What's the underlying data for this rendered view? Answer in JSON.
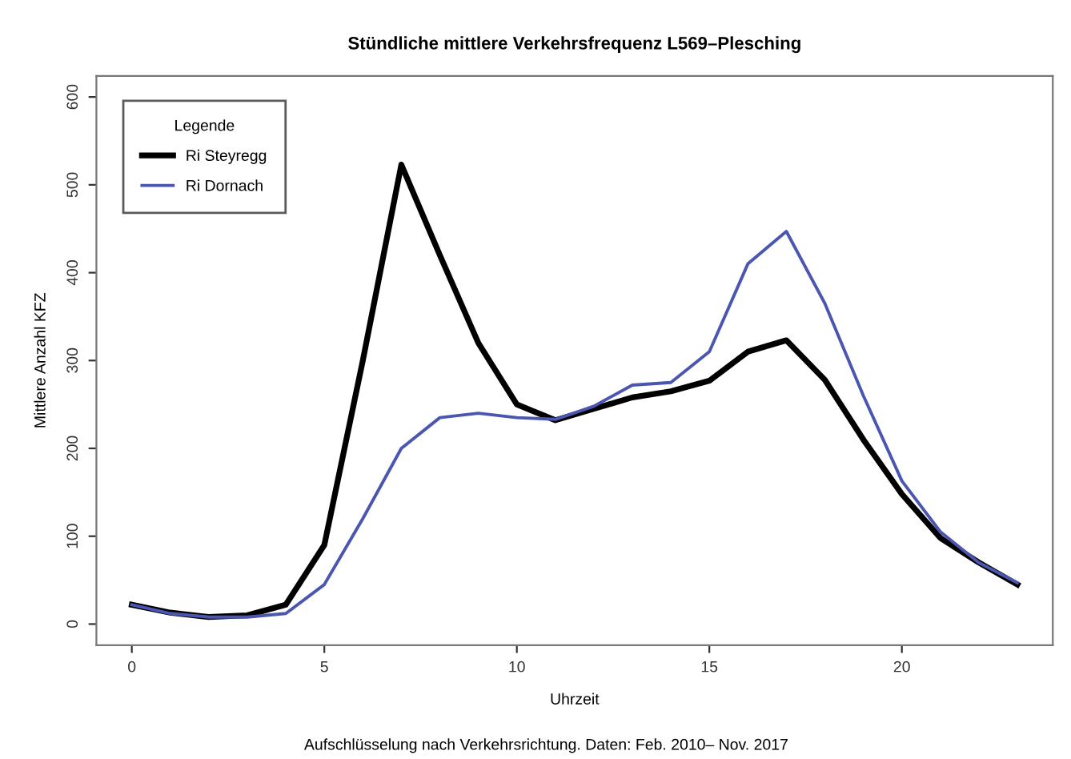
{
  "chart_data": {
    "type": "line",
    "title": "Stündliche mittlere Verkehrsfrequenz L569–Plesching",
    "xlabel": "Uhrzeit",
    "ylabel": "Mittlere Anzahl KFZ",
    "legend_title": "Legende",
    "annotations": [
      "Aufschlüsselung nach Verkehrsrichtung. Daten: Feb. 2010– Nov. 2017"
    ],
    "x": [
      0,
      1,
      2,
      3,
      4,
      5,
      6,
      7,
      8,
      9,
      10,
      11,
      12,
      13,
      14,
      15,
      16,
      17,
      18,
      19,
      20,
      21,
      22,
      23
    ],
    "series": [
      {
        "name": "Ri Steyregg",
        "color": "#000000",
        "values": [
          22,
          13,
          8,
          10,
          22,
          90,
          300,
          523,
          420,
          320,
          250,
          232,
          245,
          258,
          265,
          277,
          310,
          323,
          278,
          210,
          148,
          98,
          70,
          45
        ]
      },
      {
        "name": "Ri Dornach",
        "color": "#4a56b0",
        "values": [
          22,
          12,
          8,
          8,
          12,
          45,
          120,
          200,
          235,
          240,
          235,
          233,
          248,
          272,
          275,
          310,
          410,
          447,
          365,
          260,
          163,
          105,
          70,
          47
        ]
      }
    ],
    "xlim": [
      -0.92,
      23.92
    ],
    "ylim": [
      -24,
      624
    ],
    "xticks": [
      0,
      5,
      10,
      15,
      20
    ],
    "yticks": [
      0,
      100,
      200,
      300,
      400,
      500,
      600
    ],
    "legend": "top left",
    "grid": false,
    "marker": "none",
    "line_style": "solid"
  }
}
